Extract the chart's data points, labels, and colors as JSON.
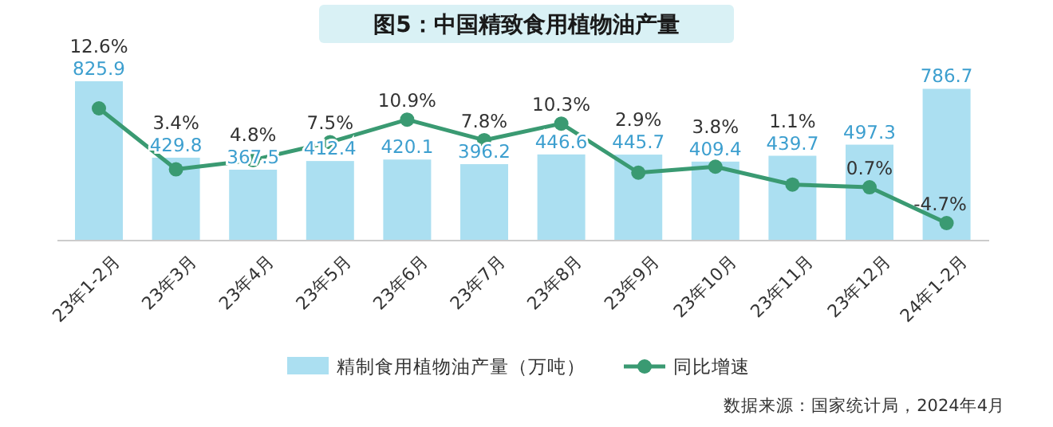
{
  "chart_data": {
    "type": "bar",
    "title": "图5：中国精致食用植物油产量",
    "categories": [
      "23年1-2月",
      "23年3月",
      "23年4月",
      "23年5月",
      "23年6月",
      "23年7月",
      "23年8月",
      "23年9月",
      "23年10月",
      "23年11月",
      "23年12月",
      "24年1-2月"
    ],
    "series": [
      {
        "name": "精制食用植物油产量（万吨）",
        "color": "#abdff1",
        "values": [
          825.9,
          429.8,
          367.5,
          412.4,
          420.1,
          396.2,
          446.6,
          445.7,
          409.4,
          439.7,
          497.3,
          786.7
        ],
        "value_labels": [
          "825.9",
          "429.8",
          "367.5",
          "412.4",
          "420.1",
          "396.2",
          "446.6",
          "445.7",
          "409.4",
          "439.7",
          "497.3",
          "786.7"
        ]
      },
      {
        "name": "同比增速",
        "type": "line",
        "axis": "y2",
        "color": "#3a9a72",
        "values": [
          12.6,
          3.4,
          4.8,
          7.5,
          10.9,
          7.8,
          10.3,
          2.9,
          3.8,
          1.1,
          0.7,
          -4.7
        ],
        "value_labels": [
          "12.6%",
          "3.4%",
          "4.8%",
          "7.5%",
          "10.9%",
          "7.8%",
          "10.3%",
          "2.9%",
          "3.8%",
          "1.1%",
          "0.7%",
          "-4.7%"
        ]
      }
    ],
    "marker": "circle",
    "legend": "bottom",
    "grid": false,
    "annotations": [
      "数据来源：国家统计局，2024年4月"
    ]
  }
}
